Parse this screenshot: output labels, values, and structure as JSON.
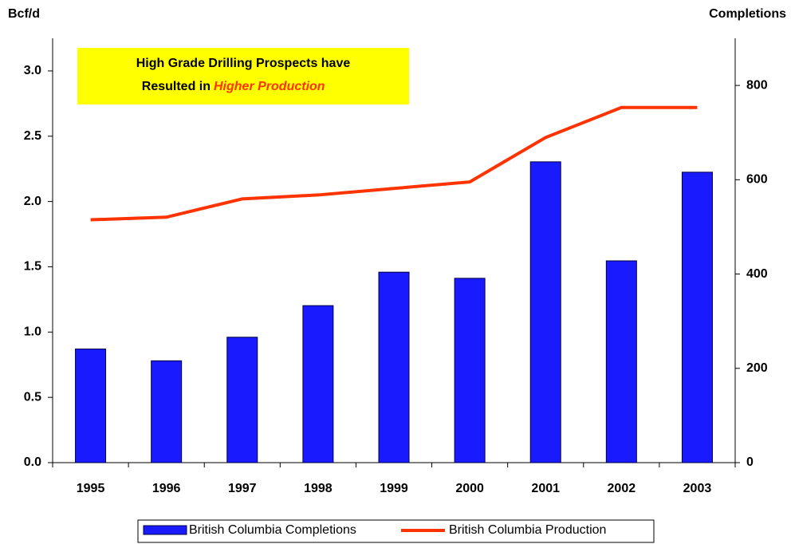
{
  "chart_data": {
    "type": "bar_line",
    "y_label": "Bcf/d",
    "y2_label": "Completions",
    "annotation": {
      "line1": "High Grade Drilling Prospects have",
      "line2": "Resulted in",
      "highlight": "Higher Production"
    },
    "categories": [
      "1995",
      "1996",
      "1997",
      "1998",
      "1999",
      "2000",
      "2001",
      "2002",
      "2003"
    ],
    "series": [
      {
        "name": "British Columbia Completions",
        "type": "bar",
        "axis": "y2",
        "color": "#1a1aff",
        "values": [
          241,
          216,
          266,
          333,
          404,
          391,
          638,
          428,
          616
        ]
      },
      {
        "name": "British Columbia Production",
        "type": "line",
        "axis": "y",
        "color": "#ff3300",
        "values": [
          1.86,
          1.88,
          2.02,
          2.05,
          2.1,
          2.15,
          2.49,
          2.72,
          2.72
        ]
      }
    ],
    "ylim": [
      0,
      3.25
    ],
    "yticks": [
      {
        "value": 0,
        "label": "0.0"
      },
      0.5,
      {
        "value": 1,
        "label": "1.0"
      },
      1.5,
      {
        "value": 2,
        "label": "2.0"
      },
      2.5,
      {
        "value": 3,
        "label": "3.0"
      }
    ],
    "y2lim": [
      0,
      900
    ],
    "y2ticks": [
      0,
      200,
      400,
      600,
      800
    ],
    "legend": "bottom"
  }
}
